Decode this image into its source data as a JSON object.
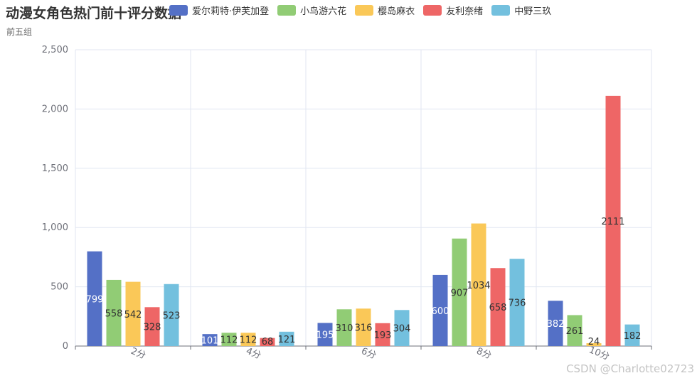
{
  "chart_data": {
    "type": "bar",
    "title": "动漫女角色热门前十评分数据",
    "subtitle": "前五组",
    "categories": [
      "2分",
      "4分",
      "6分",
      "8分",
      "10分"
    ],
    "series": [
      {
        "name": "爱尔莉特·伊芙加登",
        "color": "#5470c6",
        "values": [
          799,
          101,
          195,
          600,
          382
        ]
      },
      {
        "name": "小鸟游六花",
        "color": "#91cc75",
        "values": [
          558,
          112,
          310,
          907,
          261
        ]
      },
      {
        "name": "樱岛麻衣",
        "color": "#fac858",
        "values": [
          542,
          112,
          316,
          1034,
          24
        ]
      },
      {
        "name": "友利奈绪",
        "color": "#ee6666",
        "values": [
          328,
          68,
          193,
          658,
          2111
        ]
      },
      {
        "name": "中野三玖",
        "color": "#73c0de",
        "values": [
          523,
          121,
          304,
          736,
          182
        ]
      }
    ],
    "ylim": [
      0,
      2500
    ],
    "yticks": [
      "0",
      "500",
      "1,000",
      "1,500",
      "2,000",
      "2,500"
    ],
    "grid": true,
    "legend_position": "top",
    "data_labels": "inside"
  },
  "watermark": "CSDN @Charlotte02723"
}
